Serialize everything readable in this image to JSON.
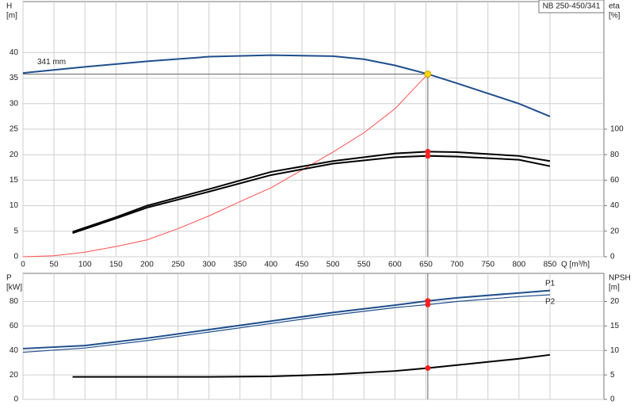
{
  "chart_data": [
    {
      "type": "line",
      "y_label": "H",
      "y_unit": "[m]",
      "y2_label": "eta",
      "y2_unit": "[%]",
      "x_label": "Q [m³/h]",
      "pump_model": "NB 250-450/341",
      "annotation": "341 mm",
      "xlim": [
        0,
        937
      ],
      "xticks": [
        0,
        50,
        100,
        150,
        200,
        250,
        300,
        350,
        400,
        450,
        500,
        550,
        600,
        650,
        700,
        750,
        800,
        850
      ],
      "show_xtick_labels": true,
      "ylim": [
        0,
        50
      ],
      "yticks": [
        0,
        5,
        10,
        15,
        20,
        25,
        30,
        35,
        40
      ],
      "y2lim": [
        0,
        200
      ],
      "y2ticks": [
        0,
        20,
        40,
        60,
        80,
        100
      ],
      "grid": true,
      "duty_point": {
        "x": 653,
        "y": 35.8,
        "color": "#ffd700"
      },
      "series": [
        {
          "color": "#1f4e8c",
          "line_width": 2,
          "x": [
            0,
            100,
            200,
            300,
            400,
            500,
            550,
            600,
            653,
            700,
            750,
            800,
            850
          ],
          "values": [
            36,
            37.2,
            38.3,
            39.2,
            39.5,
            39.3,
            38.7,
            37.5,
            35.8,
            34,
            32,
            30,
            27.5
          ]
        },
        {
          "color": "#ff5050",
          "line_width": 1,
          "x": [
            0,
            50,
            100,
            150,
            200,
            250,
            300,
            350,
            400,
            450,
            500,
            550,
            600,
            653
          ],
          "values": [
            0,
            0.2,
            0.9,
            2,
            3.3,
            5.5,
            8,
            10.8,
            13.5,
            17,
            20.5,
            24.3,
            29,
            35.8
          ]
        },
        {
          "color": "#000000",
          "line_width": 2,
          "axis": "y2",
          "x": [
            80,
            150,
            200,
            300,
            400,
            500,
            600,
            653,
            700,
            800,
            850
          ],
          "values": [
            19.5,
            31,
            40,
            53,
            66.5,
            75,
            81,
            82.4,
            82,
            79,
            75
          ]
        },
        {
          "color": "#000000",
          "line_width": 2,
          "axis": "y2",
          "x": [
            80,
            150,
            200,
            300,
            400,
            500,
            600,
            653,
            700,
            800,
            850
          ],
          "values": [
            18.5,
            30,
            38.5,
            51,
            64,
            73,
            78,
            79,
            78.5,
            76,
            71
          ]
        }
      ]
    },
    {
      "type": "line",
      "y_label": "P",
      "y_unit": "[kW]",
      "y2_label": "NPSH",
      "y2_unit": "[m]",
      "xlim": [
        0,
        937
      ],
      "xticks": [
        0,
        50,
        100,
        150,
        200,
        250,
        300,
        350,
        400,
        450,
        500,
        550,
        600,
        650,
        700,
        750,
        800,
        850
      ],
      "show_xtick_labels": false,
      "ylim": [
        0,
        103
      ],
      "yticks": [
        0,
        20,
        40,
        60,
        80
      ],
      "y2lim": [
        0,
        25.75
      ],
      "y2ticks": [
        0,
        5,
        10,
        15,
        20
      ],
      "grid": true,
      "series": [
        {
          "name": "P1",
          "color": "#1f4e8c",
          "line_width": 2,
          "x": [
            0,
            100,
            200,
            300,
            400,
            500,
            600,
            653,
            700,
            800,
            850
          ],
          "values": [
            41.5,
            44,
            50,
            57,
            64,
            71,
            77,
            80.5,
            83,
            87,
            89
          ]
        },
        {
          "name": "P2",
          "color": "#1f4e8c",
          "line_width": 1.2,
          "x": [
            0,
            100,
            200,
            300,
            400,
            500,
            600,
            653,
            700,
            800,
            850
          ],
          "values": [
            38.5,
            42,
            48,
            55,
            62,
            69,
            75,
            77.5,
            80,
            84,
            85.5
          ]
        },
        {
          "color": "#000000",
          "line_width": 2,
          "axis": "y2",
          "x": [
            80,
            200,
            300,
            400,
            500,
            600,
            653,
            700,
            800,
            850
          ],
          "values": [
            4.6,
            4.6,
            4.6,
            4.7,
            5.1,
            5.8,
            6.4,
            7,
            8.3,
            9.1
          ]
        }
      ]
    }
  ]
}
